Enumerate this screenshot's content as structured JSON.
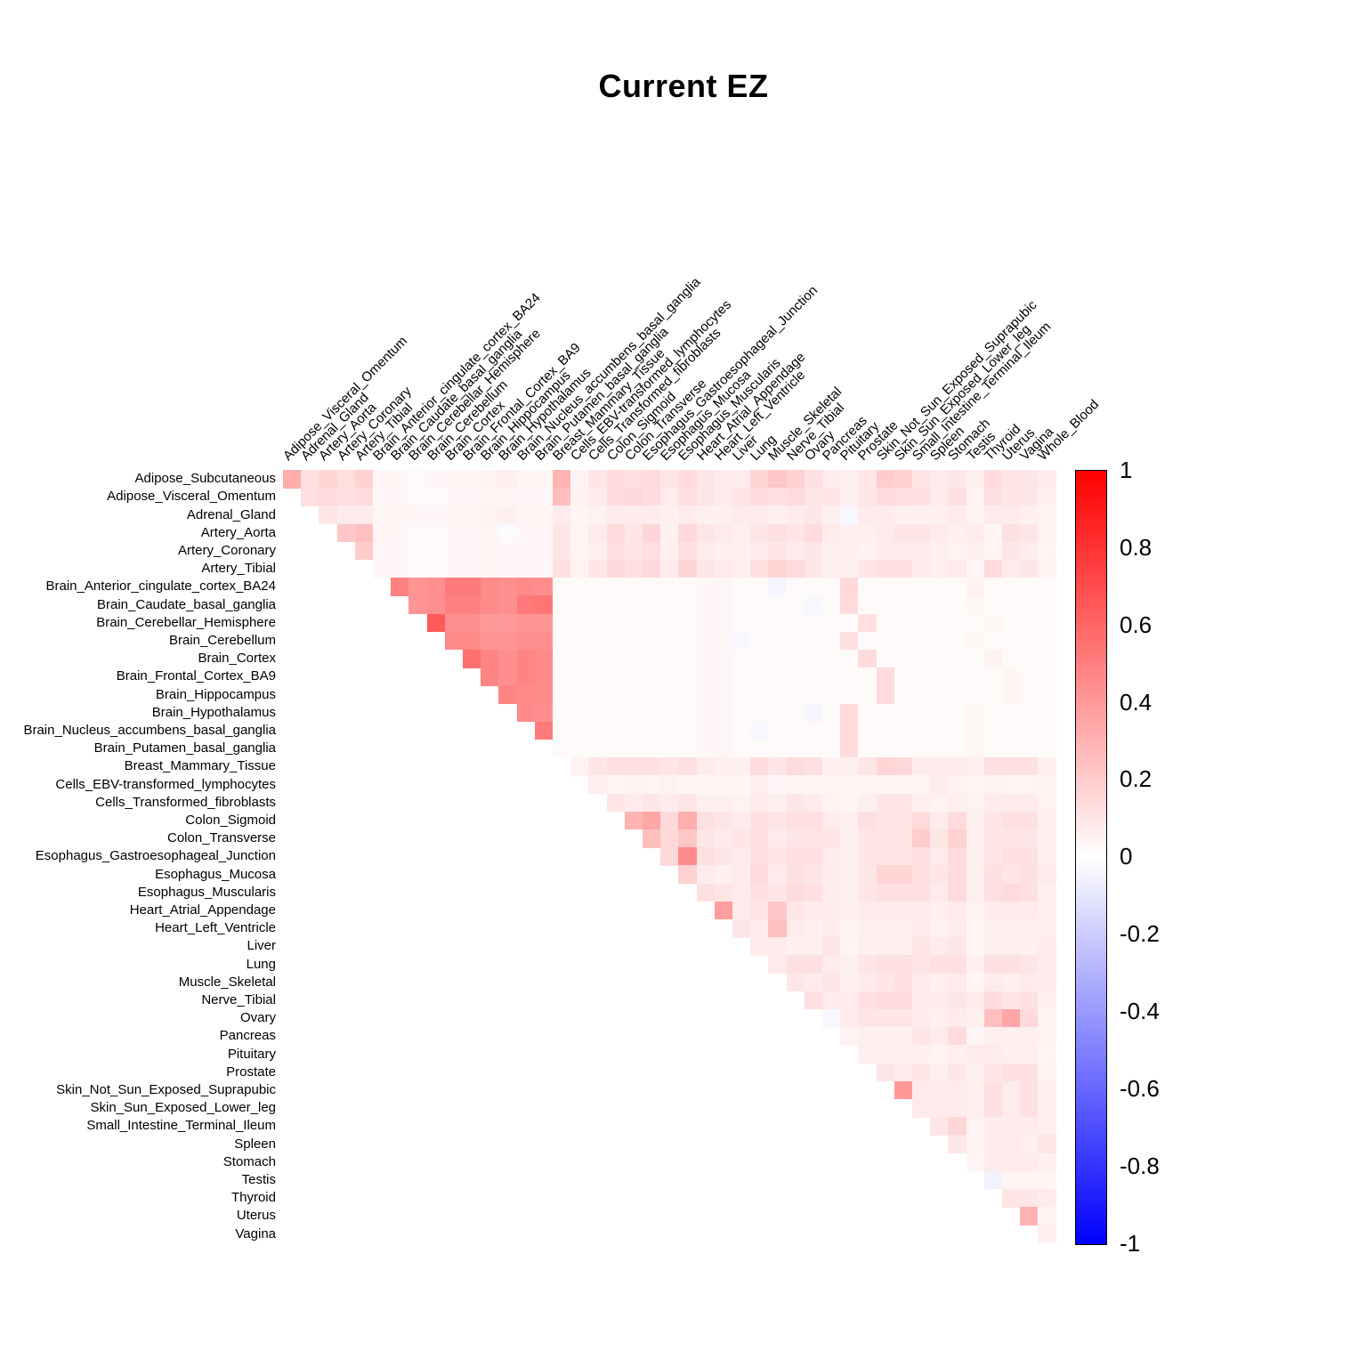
{
  "title": "Current EZ",
  "chart_data": {
    "type": "heatmap",
    "subtype": "upper-triangular correlation matrix (diagonal omitted; row i pairs with columns i+1..n)",
    "title": "Current EZ",
    "grid": false,
    "legend_position": "right colorbar",
    "tissues": [
      "Adipose_Subcutaneous",
      "Adipose_Visceral_Omentum",
      "Adrenal_Gland",
      "Artery_Aorta",
      "Artery_Coronary",
      "Artery_Tibial",
      "Brain_Anterior_cingulate_cortex_BA24",
      "Brain_Caudate_basal_ganglia",
      "Brain_Cerebellar_Hemisphere",
      "Brain_Cerebellum",
      "Brain_Cortex",
      "Brain_Frontal_Cortex_BA9",
      "Brain_Hippocampus",
      "Brain_Hypothalamus",
      "Brain_Nucleus_accumbens_basal_ganglia",
      "Brain_Putamen_basal_ganglia",
      "Breast_Mammary_Tissue",
      "Cells_EBV-transformed_lymphocytes",
      "Cells_Transformed_fibroblasts",
      "Colon_Sigmoid",
      "Colon_Transverse",
      "Esophagus_Gastroesophageal_Junction",
      "Esophagus_Mucosa",
      "Esophagus_Muscularis",
      "Heart_Atrial_Appendage",
      "Heart_Left_Ventricle",
      "Liver",
      "Lung",
      "Muscle_Skeletal",
      "Nerve_Tibial",
      "Ovary",
      "Pancreas",
      "Pituitary",
      "Prostate",
      "Skin_Not_Sun_Exposed_Suprapubic",
      "Skin_Sun_Exposed_Lower_leg",
      "Small_Intestine_Terminal_Ileum",
      "Spleen",
      "Stomach",
      "Testis",
      "Thyroid",
      "Uterus",
      "Vagina",
      "Whole_Blood"
    ],
    "row_labels_note": "rows = tissues[0..42]; columns = tissues[1..43]",
    "values": [
      [
        0.32,
        0.12,
        0.16,
        0.13,
        0.18,
        0.04,
        0.03,
        0.02,
        0.03,
        0.04,
        0.04,
        0.05,
        0.06,
        0.04,
        0.03,
        0.3,
        0.05,
        0.1,
        0.14,
        0.13,
        0.14,
        0.1,
        0.14,
        0.1,
        0.08,
        0.08,
        0.16,
        0.22,
        0.18,
        0.12,
        0.08,
        0.06,
        0.1,
        0.2,
        0.18,
        0.1,
        0.08,
        0.1,
        0.06,
        0.14,
        0.1,
        0.1,
        0.08
      ],
      [
        0.12,
        0.14,
        0.12,
        0.14,
        0.03,
        0.03,
        0.02,
        0.02,
        0.03,
        0.03,
        0.04,
        0.04,
        0.03,
        0.03,
        0.26,
        0.05,
        0.08,
        0.14,
        0.15,
        0.14,
        0.08,
        0.13,
        0.1,
        0.08,
        0.1,
        0.14,
        0.12,
        0.14,
        0.1,
        0.1,
        0.06,
        0.1,
        0.14,
        0.13,
        0.12,
        0.08,
        0.12,
        0.05,
        0.12,
        0.1,
        0.1,
        0.06
      ],
      [
        0.1,
        0.08,
        0.08,
        0.04,
        0.04,
        0.03,
        0.03,
        0.04,
        0.04,
        0.05,
        0.06,
        0.04,
        0.04,
        0.08,
        0.04,
        0.05,
        0.08,
        0.08,
        0.08,
        0.06,
        0.08,
        0.06,
        0.06,
        0.08,
        0.08,
        0.06,
        0.08,
        0.1,
        0.06,
        -0.03,
        0.08,
        0.08,
        0.06,
        0.06,
        0.06,
        0.08,
        0.05,
        0.08,
        0.08,
        0.06,
        0.05
      ],
      [
        0.22,
        0.25,
        0.04,
        0.03,
        0.02,
        0.02,
        0.03,
        0.03,
        0.04,
        -0.02,
        0.03,
        0.03,
        0.1,
        0.04,
        0.08,
        0.14,
        0.1,
        0.16,
        0.06,
        0.15,
        0.1,
        0.08,
        0.06,
        0.1,
        0.12,
        0.1,
        0.14,
        0.08,
        0.06,
        0.06,
        0.08,
        0.1,
        0.1,
        0.08,
        0.06,
        0.08,
        0.04,
        0.12,
        0.1,
        0.05
      ],
      [
        0.2,
        0.03,
        0.03,
        0.02,
        0.02,
        0.03,
        0.03,
        0.04,
        0.03,
        0.03,
        0.03,
        0.1,
        0.04,
        0.06,
        0.12,
        0.1,
        0.13,
        0.06,
        0.12,
        0.08,
        0.06,
        0.06,
        0.08,
        0.1,
        0.08,
        0.1,
        0.06,
        0.06,
        0.05,
        0.08,
        0.08,
        0.08,
        0.06,
        0.05,
        0.06,
        0.04,
        0.1,
        0.08,
        0.04
      ],
      [
        0.03,
        0.03,
        0.02,
        0.02,
        0.03,
        0.03,
        0.04,
        0.03,
        0.03,
        0.03,
        0.12,
        0.05,
        0.1,
        0.15,
        0.12,
        0.15,
        0.08,
        0.16,
        0.1,
        0.08,
        0.06,
        0.12,
        0.16,
        0.14,
        0.1,
        0.06,
        0.06,
        0.1,
        0.12,
        0.12,
        0.08,
        0.06,
        0.08,
        0.04,
        0.14,
        0.08,
        0.1,
        0.05
      ],
      [
        0.5,
        0.42,
        0.44,
        0.52,
        0.52,
        0.46,
        0.44,
        0.46,
        0.44,
        0.02,
        0.02,
        0.02,
        0.02,
        0.02,
        0.02,
        0.02,
        0.02,
        0.03,
        0.03,
        0.02,
        0.02,
        -0.04,
        0.02,
        0.02,
        0.02,
        0.15,
        0.02,
        0.02,
        0.02,
        0.02,
        0.02,
        0.02,
        0.05,
        0.02,
        0.02,
        0.02,
        0.02
      ],
      [
        0.42,
        0.44,
        0.5,
        0.5,
        0.46,
        0.44,
        0.52,
        0.54,
        0.02,
        0.02,
        0.02,
        0.02,
        0.02,
        0.02,
        0.02,
        0.02,
        0.03,
        0.03,
        0.02,
        0.02,
        0.02,
        0.02,
        -0.03,
        0.02,
        0.14,
        0.02,
        0.02,
        0.02,
        0.02,
        0.02,
        0.02,
        0.04,
        0.02,
        0.02,
        0.02,
        0.02
      ],
      [
        0.65,
        0.44,
        0.44,
        0.4,
        0.4,
        0.42,
        0.42,
        0.02,
        0.02,
        0.02,
        0.02,
        0.02,
        0.02,
        0.02,
        0.02,
        0.03,
        0.03,
        0.02,
        0.02,
        0.02,
        0.02,
        0.02,
        0.02,
        0.02,
        0.12,
        0.02,
        0.02,
        0.02,
        0.02,
        0.02,
        0.02,
        0.04,
        0.02,
        0.02,
        0.02
      ],
      [
        0.46,
        0.46,
        0.42,
        0.42,
        0.44,
        0.44,
        0.02,
        0.02,
        0.02,
        0.02,
        0.02,
        0.02,
        0.02,
        0.02,
        0.03,
        0.03,
        -0.03,
        0.02,
        0.02,
        0.02,
        0.02,
        0.02,
        0.12,
        0.02,
        0.02,
        0.02,
        0.02,
        0.02,
        0.02,
        0.04,
        0.02,
        0.02,
        0.02,
        0.02
      ],
      [
        0.56,
        0.48,
        0.44,
        0.48,
        0.46,
        0.02,
        0.02,
        0.02,
        0.02,
        0.02,
        0.02,
        0.02,
        0.02,
        0.03,
        0.03,
        0.02,
        0.02,
        0.02,
        0.02,
        0.02,
        0.02,
        0.02,
        0.14,
        0.02,
        0.02,
        0.02,
        0.02,
        0.02,
        0.02,
        0.05,
        0.02,
        0.02,
        0.02
      ],
      [
        0.48,
        0.44,
        0.48,
        0.46,
        0.02,
        0.02,
        0.02,
        0.02,
        0.02,
        0.02,
        0.02,
        0.02,
        0.03,
        0.03,
        0.02,
        0.02,
        0.02,
        0.02,
        0.02,
        0.02,
        0.02,
        0.02,
        0.14,
        0.02,
        0.02,
        0.02,
        0.02,
        0.02,
        0.02,
        0.04,
        0.02,
        0.02
      ],
      [
        0.48,
        0.46,
        0.46,
        0.02,
        0.02,
        0.02,
        0.02,
        0.02,
        0.02,
        0.02,
        0.02,
        0.03,
        0.03,
        0.02,
        0.02,
        0.02,
        0.02,
        0.02,
        0.02,
        0.02,
        0.02,
        0.14,
        0.02,
        0.02,
        0.02,
        0.02,
        0.02,
        0.02,
        0.04,
        0.02,
        0.02
      ],
      [
        0.46,
        0.44,
        0.02,
        0.02,
        0.02,
        0.02,
        0.02,
        0.02,
        0.02,
        0.02,
        0.03,
        0.03,
        0.02,
        0.02,
        0.02,
        0.02,
        -0.04,
        0.02,
        0.14,
        0.02,
        0.02,
        0.02,
        0.02,
        0.02,
        0.02,
        0.04,
        0.02,
        0.02,
        0.02,
        0.02
      ],
      [
        0.52,
        0.02,
        0.02,
        0.02,
        0.02,
        0.02,
        0.02,
        0.02,
        0.02,
        0.03,
        0.03,
        0.02,
        -0.03,
        0.02,
        0.02,
        0.02,
        0.02,
        0.14,
        0.02,
        0.02,
        0.02,
        0.02,
        0.02,
        0.02,
        0.04,
        0.02,
        0.02,
        0.02,
        0.02
      ],
      [
        0.02,
        0.02,
        0.02,
        0.02,
        0.02,
        0.02,
        0.02,
        0.02,
        0.03,
        0.03,
        0.02,
        0.02,
        0.02,
        0.02,
        0.02,
        0.02,
        0.14,
        0.02,
        0.02,
        0.02,
        0.02,
        0.02,
        0.02,
        0.04,
        0.02,
        0.02,
        0.02,
        0.02
      ],
      [
        0.05,
        0.1,
        0.12,
        0.12,
        0.12,
        0.1,
        0.12,
        0.08,
        0.06,
        0.06,
        0.14,
        0.1,
        0.14,
        0.12,
        0.06,
        0.06,
        0.1,
        0.16,
        0.15,
        0.08,
        0.08,
        0.08,
        0.06,
        0.12,
        0.12,
        0.12,
        0.06
      ],
      [
        0.06,
        0.04,
        0.05,
        0.04,
        0.05,
        0.04,
        0.04,
        0.04,
        0.03,
        0.06,
        0.03,
        0.04,
        0.04,
        0.04,
        0.03,
        0.04,
        0.04,
        0.04,
        0.04,
        0.08,
        0.05,
        0.04,
        0.05,
        0.04,
        0.04,
        0.05
      ],
      [
        0.1,
        0.08,
        0.1,
        0.08,
        0.1,
        0.06,
        0.06,
        0.05,
        0.08,
        0.06,
        0.1,
        0.08,
        0.05,
        0.04,
        0.06,
        0.1,
        0.1,
        0.06,
        0.05,
        0.06,
        0.05,
        0.08,
        0.08,
        0.08,
        0.05
      ],
      [
        0.3,
        0.35,
        0.15,
        0.32,
        0.12,
        0.1,
        0.08,
        0.12,
        0.1,
        0.12,
        0.12,
        0.08,
        0.06,
        0.12,
        0.1,
        0.1,
        0.14,
        0.08,
        0.14,
        0.06,
        0.1,
        0.12,
        0.12,
        0.06
      ],
      [
        0.25,
        0.15,
        0.22,
        0.1,
        0.08,
        0.1,
        0.12,
        0.08,
        0.1,
        0.1,
        0.1,
        0.06,
        0.1,
        0.1,
        0.1,
        0.2,
        0.1,
        0.18,
        0.06,
        0.1,
        0.1,
        0.1,
        0.06
      ],
      [
        0.15,
        0.45,
        0.12,
        0.1,
        0.08,
        0.12,
        0.1,
        0.12,
        0.12,
        0.08,
        0.06,
        0.1,
        0.1,
        0.1,
        0.12,
        0.08,
        0.14,
        0.06,
        0.1,
        0.12,
        0.12,
        0.06
      ],
      [
        0.18,
        0.08,
        0.06,
        0.08,
        0.14,
        0.08,
        0.12,
        0.1,
        0.08,
        0.06,
        0.1,
        0.16,
        0.16,
        0.12,
        0.1,
        0.14,
        0.06,
        0.12,
        0.1,
        0.12,
        0.08
      ],
      [
        0.12,
        0.1,
        0.08,
        0.12,
        0.1,
        0.14,
        0.12,
        0.08,
        0.06,
        0.1,
        0.12,
        0.12,
        0.12,
        0.08,
        0.14,
        0.06,
        0.12,
        0.14,
        0.12,
        0.06
      ],
      [
        0.38,
        0.08,
        0.1,
        0.22,
        0.1,
        0.08,
        0.08,
        0.06,
        0.08,
        0.08,
        0.08,
        0.08,
        0.06,
        0.08,
        0.05,
        0.08,
        0.08,
        0.08,
        0.06
      ],
      [
        0.1,
        0.08,
        0.25,
        0.08,
        0.06,
        0.08,
        0.05,
        0.06,
        0.06,
        0.06,
        0.08,
        0.05,
        0.08,
        0.04,
        0.06,
        0.06,
        0.06,
        0.06
      ],
      [
        0.08,
        0.08,
        0.06,
        0.06,
        0.1,
        0.04,
        0.06,
        0.06,
        0.06,
        0.1,
        0.08,
        0.1,
        0.04,
        0.06,
        0.06,
        0.06,
        0.08
      ],
      [
        0.08,
        0.12,
        0.12,
        0.08,
        0.06,
        0.1,
        0.12,
        0.12,
        0.1,
        0.12,
        0.12,
        0.06,
        0.12,
        0.12,
        0.1,
        0.08
      ],
      [
        0.1,
        0.08,
        0.1,
        0.06,
        0.08,
        0.1,
        0.12,
        0.08,
        0.06,
        0.08,
        0.04,
        0.08,
        0.06,
        0.08,
        0.08
      ],
      [
        0.12,
        0.08,
        0.08,
        0.12,
        0.14,
        0.14,
        0.08,
        0.08,
        0.1,
        0.08,
        0.14,
        0.1,
        0.12,
        0.06
      ],
      [
        -0.03,
        0.08,
        0.1,
        0.1,
        0.1,
        0.08,
        0.06,
        0.08,
        0.06,
        0.25,
        0.35,
        0.15,
        0.05
      ],
      [
        0.05,
        0.06,
        0.06,
        0.06,
        0.1,
        0.08,
        0.14,
        0.04,
        0.06,
        0.06,
        0.06,
        0.05
      ],
      [
        0.06,
        0.06,
        0.06,
        0.06,
        0.05,
        0.06,
        0.08,
        0.08,
        0.06,
        0.06,
        0.04
      ],
      [
        0.1,
        0.08,
        0.1,
        0.06,
        0.1,
        0.06,
        0.1,
        0.12,
        0.12,
        0.05
      ],
      [
        0.4,
        0.08,
        0.08,
        0.08,
        0.06,
        0.12,
        0.08,
        0.12,
        0.06
      ],
      [
        0.08,
        0.08,
        0.08,
        0.06,
        0.12,
        0.08,
        0.12,
        0.06
      ],
      [
        0.1,
        0.16,
        0.05,
        0.08,
        0.08,
        0.08,
        0.06
      ],
      [
        0.1,
        0.05,
        0.08,
        0.08,
        0.06,
        0.1
      ],
      [
        0.04,
        0.08,
        0.08,
        0.08,
        0.06
      ],
      [
        -0.05,
        0.04,
        0.04,
        0.04
      ],
      [
        0.1,
        0.1,
        0.08
      ],
      [
        0.3,
        0.05
      ],
      [
        0.06
      ]
    ],
    "colorbar": {
      "min": -1,
      "max": 1,
      "ticks": [
        "1",
        "0.8",
        "0.6",
        "0.4",
        "0.2",
        "0",
        "-0.2",
        "-0.4",
        "-0.6",
        "-0.8",
        "-1"
      ],
      "color_positive": "#FF0000",
      "color_zero": "#FFFFFF",
      "color_negative": "#0000FF"
    }
  }
}
